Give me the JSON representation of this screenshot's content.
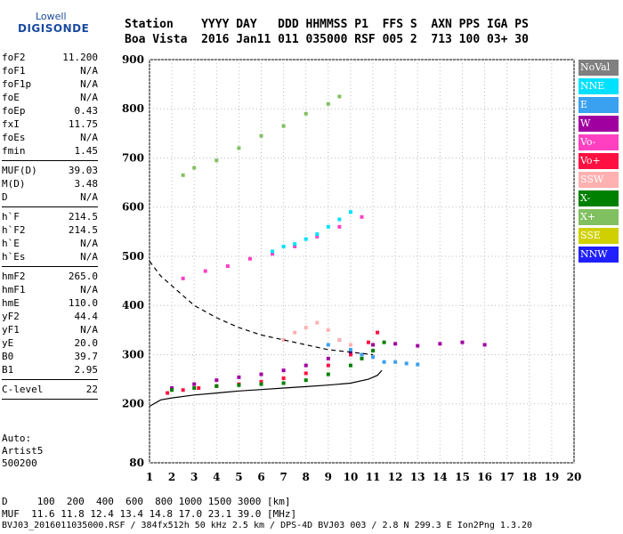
{
  "logo": {
    "line1": "Lowell",
    "line2": "DIGISONDE"
  },
  "header": {
    "row1": "Station    YYYY DAY   DDD HHMMSS P1  FFS S  AXN PPS IGA PS",
    "row2": "Boa Vista  2016 Jan11 011 035000 RSF 005 2  713 100 03+ 30"
  },
  "params": [
    {
      "k": "foF2",
      "v": "11.200"
    },
    {
      "k": "foF1",
      "v": "N/A"
    },
    {
      "k": "foF1p",
      "v": "N/A"
    },
    {
      "k": "foE",
      "v": "N/A"
    },
    {
      "k": "foEp",
      "v": "0.43"
    },
    {
      "k": "fxI",
      "v": "11.75"
    },
    {
      "k": "foEs",
      "v": "N/A"
    },
    {
      "k": "fmin",
      "v": "1.45"
    },
    {
      "sep": true
    },
    {
      "k": "MUF(D)",
      "v": "39.03"
    },
    {
      "k": "M(D)",
      "v": "3.48"
    },
    {
      "k": "D",
      "v": "N/A"
    },
    {
      "sep": true
    },
    {
      "k": "h`F",
      "v": "214.5"
    },
    {
      "k": "h`F2",
      "v": "214.5"
    },
    {
      "k": "h`E",
      "v": "N/A"
    },
    {
      "k": "h`Es",
      "v": "N/A"
    },
    {
      "sep": true
    },
    {
      "k": "hmF2",
      "v": "265.0"
    },
    {
      "k": "hmF1",
      "v": "N/A"
    },
    {
      "k": "hmE",
      "v": "110.0"
    },
    {
      "k": "yF2",
      "v": "44.4"
    },
    {
      "k": "yF1",
      "v": "N/A"
    },
    {
      "k": "yE",
      "v": "20.0"
    },
    {
      "k": "B0",
      "v": "39.7"
    },
    {
      "k": "B1",
      "v": "2.95"
    },
    {
      "sep": true
    },
    {
      "k": "C-level",
      "v": "22"
    },
    {
      "sep": true
    }
  ],
  "auto": {
    "line1": "Auto:",
    "line2": "Artist5",
    "line3": "500200"
  },
  "legend": [
    {
      "label": "NoVal",
      "color": "#808080"
    },
    {
      "label": "NNE",
      "color": "#00e0ff"
    },
    {
      "label": "E",
      "color": "#3aa0f0"
    },
    {
      "label": "W",
      "color": "#a000a0"
    },
    {
      "label": "Vo-",
      "color": "#ff40c0"
    },
    {
      "label": "Vo+",
      "color": "#ff1040"
    },
    {
      "label": "SSW",
      "color": "#ffb0b0"
    },
    {
      "label": "X-",
      "color": "#008000"
    },
    {
      "label": "X+",
      "color": "#80c060"
    },
    {
      "label": "SSE",
      "color": "#d0d000"
    },
    {
      "label": "NNW",
      "color": "#2020ff"
    }
  ],
  "footer": {
    "row1": "D     100  200  400  600  800 1000 1500 3000 [km]",
    "row2": "MUF  11.6 11.8 12.4 13.4 14.8 17.0 23.1 39.0 [MHz]",
    "row3": "BVJ03_2016011035000.RSF / 384fx512h 50 kHz 2.5 km / DPS-4D BVJ03 003 / 2.8 N 299.3 E Ion2Png 1.3.20"
  },
  "chart_data": {
    "type": "scatter",
    "xlim": [
      1,
      20
    ],
    "ylim": [
      80,
      900
    ],
    "xticks": [
      1,
      2,
      3,
      4,
      5,
      6,
      7,
      8,
      9,
      10,
      11,
      12,
      13,
      14,
      15,
      16,
      17,
      18,
      19,
      20
    ],
    "yticks": [
      80,
      200,
      300,
      400,
      500,
      600,
      700,
      800,
      900
    ],
    "grid": true,
    "series": [
      {
        "color": "#ff1040",
        "x": [
          1.8,
          2.5,
          3.2,
          4.0,
          5.0,
          6.0,
          7.0,
          8.0,
          9.0,
          10.0,
          10.8,
          11.2
        ],
        "y": [
          222,
          228,
          232,
          236,
          240,
          245,
          252,
          262,
          278,
          300,
          325,
          345
        ]
      },
      {
        "color": "#a000a0",
        "x": [
          2.0,
          3.0,
          4.0,
          5.0,
          6.0,
          7.0,
          8.0,
          9.0,
          10.0,
          11.0,
          12.0,
          13.0,
          14.0,
          15.0,
          16.0
        ],
        "y": [
          232,
          240,
          248,
          254,
          260,
          268,
          278,
          292,
          305,
          320,
          322,
          318,
          322,
          325,
          320
        ]
      },
      {
        "color": "#008000",
        "x": [
          2.0,
          3.0,
          4.0,
          5.0,
          6.0,
          7.0,
          8.0,
          9.0,
          10.0,
          10.5,
          11.0,
          11.5
        ],
        "y": [
          228,
          232,
          236,
          238,
          240,
          242,
          248,
          260,
          278,
          292,
          308,
          325
        ]
      },
      {
        "color": "#3aa0f0",
        "x": [
          9.0,
          9.5,
          10.0,
          10.5,
          11.0,
          11.5,
          12.0,
          12.5,
          13.0
        ],
        "y": [
          320,
          330,
          310,
          300,
          295,
          285,
          285,
          282,
          280
        ]
      },
      {
        "color": "#ffb0b0",
        "x": [
          7.0,
          7.5,
          8.0,
          8.5,
          9.0,
          9.5,
          10.0
        ],
        "y": [
          330,
          345,
          355,
          365,
          350,
          330,
          320
        ]
      },
      {
        "color": "#ff40c0",
        "x": [
          2.5,
          3.5,
          4.5,
          5.5,
          6.5,
          7.5,
          8.5,
          9.5,
          10.5
        ],
        "y": [
          455,
          470,
          480,
          495,
          505,
          520,
          540,
          560,
          580
        ]
      },
      {
        "color": "#00e0ff",
        "x": [
          6.5,
          7.0,
          7.5,
          8.0,
          8.5,
          9.0,
          9.5,
          10.0
        ],
        "y": [
          510,
          520,
          525,
          535,
          545,
          560,
          575,
          590
        ]
      },
      {
        "color": "#80c060",
        "x": [
          2.5,
          3.0,
          4.0,
          5.0,
          6.0,
          7.0,
          8.0,
          9.0,
          9.5
        ],
        "y": [
          665,
          680,
          695,
          720,
          745,
          765,
          790,
          810,
          825
        ]
      }
    ],
    "profile_solid": {
      "x": [
        1,
        1.5,
        2,
        3,
        4,
        5,
        6,
        7,
        8,
        9,
        10,
        10.8,
        11.2,
        11.4
      ],
      "y": [
        195,
        208,
        212,
        218,
        222,
        226,
        229,
        232,
        235,
        238,
        242,
        250,
        258,
        268
      ]
    },
    "profile_dashed": {
      "x": [
        1,
        1.5,
        2,
        2.5,
        3,
        4,
        5,
        6,
        7,
        8,
        9,
        10,
        11
      ],
      "y": [
        490,
        460,
        440,
        420,
        400,
        375,
        355,
        340,
        330,
        320,
        310,
        305,
        300
      ]
    }
  }
}
